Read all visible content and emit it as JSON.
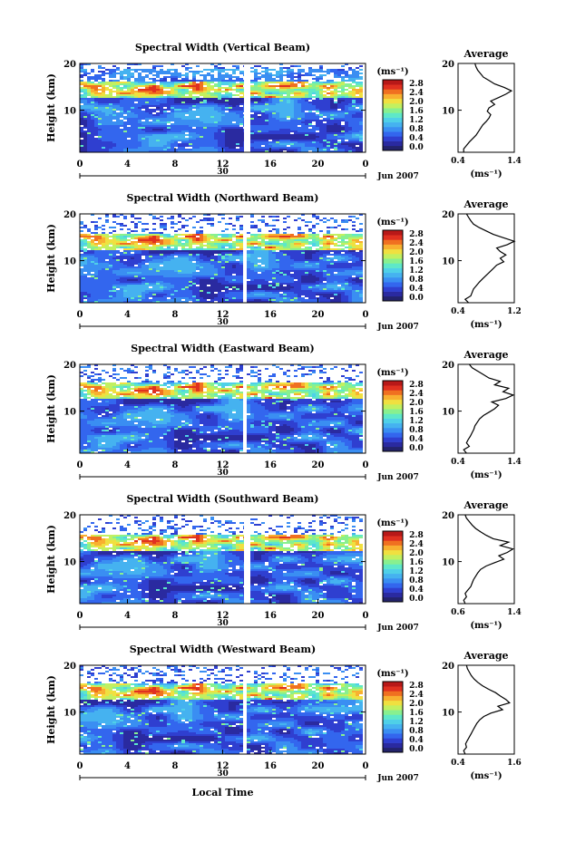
{
  "chart_data": [
    {
      "type": "heatmap",
      "title": "Spectral Width (Vertical Beam)",
      "xlabel": "",
      "ylabel": "Height (km)",
      "xticks": [
        "0",
        "4",
        "8",
        "12",
        "16",
        "20",
        "0"
      ],
      "yticks": [
        "10",
        "20"
      ],
      "date_label": "30",
      "month_label": "Jun 2007",
      "colorbar": {
        "unit": "(ms⁻¹)",
        "ticks": [
          "0.0",
          "0.4",
          "0.8",
          "1.2",
          "1.6",
          "2.0",
          "2.4",
          "2.8"
        ]
      },
      "average": {
        "title": "Average",
        "xticks": [
          "0.4",
          "1.4"
        ],
        "xlabel": "(ms⁻¹)",
        "yticks": [
          "10",
          "20"
        ],
        "xlim": [
          0.4,
          1.4
        ],
        "profile": [
          0.5,
          0.5,
          0.55,
          0.6,
          0.66,
          0.72,
          0.76,
          0.8,
          0.84,
          0.9,
          0.95,
          0.98,
          0.92,
          0.95,
          1.05,
          0.98,
          1.12,
          1.25,
          1.35,
          1.22,
          1.05,
          0.95,
          0.85,
          0.8,
          0.75,
          0.72,
          0.7
        ]
      }
    },
    {
      "type": "heatmap",
      "title": "Spectral Width (Northward Beam)",
      "xlabel": "",
      "ylabel": "Height (km)",
      "xticks": [
        "0",
        "4",
        "8",
        "12",
        "16",
        "20",
        "0"
      ],
      "yticks": [
        "10",
        "20"
      ],
      "date_label": "30",
      "month_label": "Jun 2007",
      "colorbar": {
        "unit": "(ms⁻¹)",
        "ticks": [
          "0.0",
          "0.4",
          "0.8",
          "1.2",
          "1.6",
          "2.0",
          "2.4",
          "2.8"
        ]
      },
      "average": {
        "title": "Average",
        "xticks": [
          "0.4",
          "1.2"
        ],
        "xlabel": "(ms⁻¹)",
        "yticks": [
          "10",
          "20"
        ],
        "xlim": [
          0.4,
          1.2
        ],
        "profile": [
          0.55,
          0.5,
          0.58,
          0.6,
          0.62,
          0.66,
          0.7,
          0.75,
          0.8,
          0.85,
          0.9,
          0.95,
          1.05,
          1.0,
          1.08,
          1.0,
          0.95,
          1.1,
          1.2,
          1.05,
          0.9,
          0.8,
          0.7,
          0.62,
          0.58,
          0.55,
          0.52
        ]
      }
    },
    {
      "type": "heatmap",
      "title": "Spectral Width (Eastward Beam)",
      "xlabel": "",
      "ylabel": "Height (km)",
      "xticks": [
        "0",
        "4",
        "8",
        "12",
        "16",
        "20",
        "0"
      ],
      "yticks": [
        "10",
        "20"
      ],
      "date_label": "30",
      "month_label": "Jun 2007",
      "colorbar": {
        "unit": "(ms⁻¹)",
        "ticks": [
          "0.0",
          "0.4",
          "0.8",
          "1.2",
          "1.6",
          "2.0",
          "2.4",
          "2.8"
        ]
      },
      "average": {
        "title": "Average",
        "xticks": [
          "0.4",
          "1.4"
        ],
        "xlabel": "(ms⁻¹)",
        "yticks": [
          "10",
          "20"
        ],
        "xlim": [
          0.4,
          1.4
        ],
        "profile": [
          0.55,
          0.5,
          0.6,
          0.55,
          0.58,
          0.62,
          0.65,
          0.68,
          0.7,
          0.74,
          0.78,
          0.85,
          0.95,
          1.05,
          1.12,
          1.0,
          1.25,
          1.38,
          1.2,
          1.3,
          1.05,
          1.15,
          0.95,
          0.85,
          0.75,
          0.65,
          0.6
        ]
      }
    },
    {
      "type": "heatmap",
      "title": "Spectral Width (Southward Beam)",
      "xlabel": "",
      "ylabel": "Height (km)",
      "xticks": [
        "0",
        "4",
        "8",
        "12",
        "16",
        "20",
        "0"
      ],
      "yticks": [
        "10",
        "20"
      ],
      "date_label": "30",
      "month_label": "Jun 2007",
      "colorbar": {
        "unit": "(ms⁻¹)",
        "ticks": [
          "0.0",
          "0.4",
          "0.8",
          "1.2",
          "1.6",
          "2.0",
          "2.4",
          "2.8"
        ]
      },
      "average": {
        "title": "Average",
        "xticks": [
          "0.6",
          "1.4"
        ],
        "xlabel": "(ms⁻¹)",
        "yticks": [
          "10",
          "20"
        ],
        "xlim": [
          0.6,
          1.4
        ],
        "profile": [
          0.7,
          0.68,
          0.72,
          0.7,
          0.74,
          0.78,
          0.8,
          0.82,
          0.85,
          0.88,
          0.92,
          1.0,
          1.12,
          1.25,
          1.18,
          1.3,
          1.38,
          1.2,
          1.32,
          1.1,
          1.0,
          0.92,
          0.85,
          0.8,
          0.76,
          0.72,
          0.7
        ]
      }
    },
    {
      "type": "heatmap",
      "title": "Spectral Width (Westward Beam)",
      "xlabel": "Local Time",
      "ylabel": "Height (km)",
      "xticks": [
        "0",
        "4",
        "8",
        "12",
        "16",
        "20",
        "0"
      ],
      "yticks": [
        "10",
        "20"
      ],
      "date_label": "30",
      "month_label": "Jun 2007",
      "colorbar": {
        "unit": "(ms⁻¹)",
        "ticks": [
          "0.0",
          "0.4",
          "0.8",
          "1.2",
          "1.6",
          "2.0",
          "2.4",
          "2.8"
        ]
      },
      "average": {
        "title": "Average",
        "xticks": [
          "0.4",
          "1.6"
        ],
        "xlabel": "(ms⁻¹)",
        "yticks": [
          "10",
          "20"
        ],
        "xlim": [
          0.4,
          1.6
        ],
        "profile": [
          0.55,
          0.52,
          0.58,
          0.56,
          0.6,
          0.64,
          0.68,
          0.72,
          0.76,
          0.8,
          0.86,
          0.95,
          1.1,
          1.35,
          1.25,
          1.5,
          1.42,
          1.3,
          1.2,
          1.05,
          0.92,
          0.82,
          0.74,
          0.68,
          0.64,
          0.6,
          0.58
        ]
      }
    }
  ],
  "colors": {
    "scale": [
      "#23236b",
      "#2a2aa0",
      "#2f3fd0",
      "#3366ee",
      "#3a8ef2",
      "#45b2f0",
      "#4fd0e8",
      "#5ee8c8",
      "#88f08f",
      "#c2f060",
      "#f0e040",
      "#f8b030",
      "#f07020",
      "#e03020",
      "#b81818"
    ],
    "average_line": "#000000"
  }
}
